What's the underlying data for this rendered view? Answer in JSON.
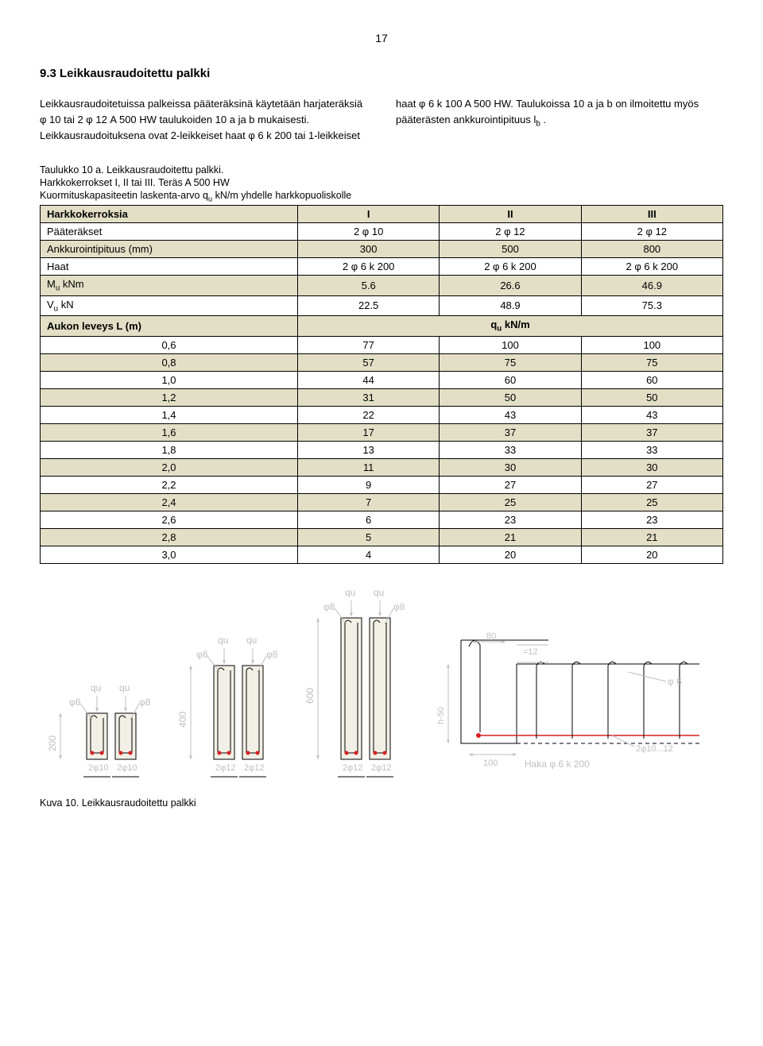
{
  "page_number": "17",
  "section_title": "9.3 Leikkausraudoitettu palkki",
  "left_col_text": "Leikkausraudoitetuissa palkeissa pääteräksinä käytetään harjateräksiä φ 10 tai 2 φ 12 A 500 HW taulukoiden 10 a ja b mukaisesti. Leikkausraudoituksena ovat 2-leikkeiset haat φ 6 k 200 tai 1-leikkeiset",
  "right_col_text_1": "haat φ 6 k 100 A 500 HW. Taulukoissa 10 a ja b  on ilmoitettu myös pääterästen ankkurointipituus l",
  "right_col_text_sub": "b",
  "right_col_text_2": " .",
  "table_caption_1": "Taulukko 10 a. Leikkausraudoitettu palkki.",
  "table_caption_2": "Harkkokerrokset I, II tai III. Teräs A 500 HW",
  "table_caption_3": "Kuormituskapasiteetin laskenta-arvo q",
  "table_caption_3_sub": "u",
  "table_caption_3_tail": " kN/m yhdelle harkkopuoliskolle",
  "footer_caption": "Kuva 10. Leikkausraudoitettu palkki",
  "table": {
    "header_row": [
      "Harkkokerroksia",
      "I",
      "II",
      "III"
    ],
    "rows": [
      {
        "cls": "white",
        "cells": [
          "Pääteräkset",
          "2 φ 10",
          "2 φ 12",
          "2 φ 12"
        ]
      },
      {
        "cls": "beige",
        "cells": [
          "Ankkurointipituus (mm)",
          "300",
          "500",
          "800"
        ]
      },
      {
        "cls": "white",
        "cells": [
          "Haat",
          "2 φ 6 k 200",
          "2 φ 6 k 200",
          "2 φ 6 k 200"
        ]
      },
      {
        "cls": "beige",
        "cells": [
          "Mu kNm",
          "5.6",
          "26.6",
          "46.9"
        ]
      },
      {
        "cls": "white",
        "cells": [
          "Vu kN",
          "22.5",
          "48.9",
          "75.3"
        ]
      }
    ],
    "span_row": {
      "left": "Aukon leveys L (m)",
      "right": "qu kN/m"
    },
    "data_rows": [
      {
        "cls": "white",
        "cells": [
          "0,6",
          "77",
          "100",
          "100"
        ]
      },
      {
        "cls": "beige",
        "cells": [
          "0,8",
          "57",
          "75",
          "75"
        ]
      },
      {
        "cls": "white",
        "cells": [
          "1,0",
          "44",
          "60",
          "60"
        ]
      },
      {
        "cls": "beige",
        "cells": [
          "1,2",
          "31",
          "50",
          "50"
        ]
      },
      {
        "cls": "white",
        "cells": [
          "1,4",
          "22",
          "43",
          "43"
        ]
      },
      {
        "cls": "beige",
        "cells": [
          "1,6",
          "17",
          "37",
          "37"
        ]
      },
      {
        "cls": "white",
        "cells": [
          "1,8",
          "13",
          "33",
          "33"
        ]
      },
      {
        "cls": "beige",
        "cells": [
          "2,0",
          "11",
          "30",
          "30"
        ]
      },
      {
        "cls": "white",
        "cells": [
          "2,2",
          "9",
          "27",
          "27"
        ]
      },
      {
        "cls": "beige",
        "cells": [
          "2,4",
          "7",
          "25",
          "25"
        ]
      },
      {
        "cls": "white",
        "cells": [
          "2,6",
          "6",
          "23",
          "23"
        ]
      },
      {
        "cls": "beige",
        "cells": [
          "2,8",
          "5",
          "21",
          "21"
        ]
      },
      {
        "cls": "white",
        "cells": [
          "3,0",
          "4",
          "20",
          "20"
        ]
      }
    ]
  },
  "diagram": {
    "colors": {
      "block_fill": "#f2f0e6",
      "line": "#000000",
      "light_text": "#bfbfbf",
      "red": "#d92020"
    },
    "labels": {
      "qu": "qu",
      "phi8": "φ8",
      "phi6": "φ 6",
      "dim200": "200",
      "dim400": "400",
      "dim600": "600",
      "dim100": "100",
      "dim80": "80",
      "h50": "h-50",
      "eq12": "=12",
      "rebar_2_10": "2φ10",
      "rebar_2_12": "2φ12",
      "rebar_2_10_12": "2φ10...12",
      "haka": "Haka φ 6  k  200"
    }
  }
}
